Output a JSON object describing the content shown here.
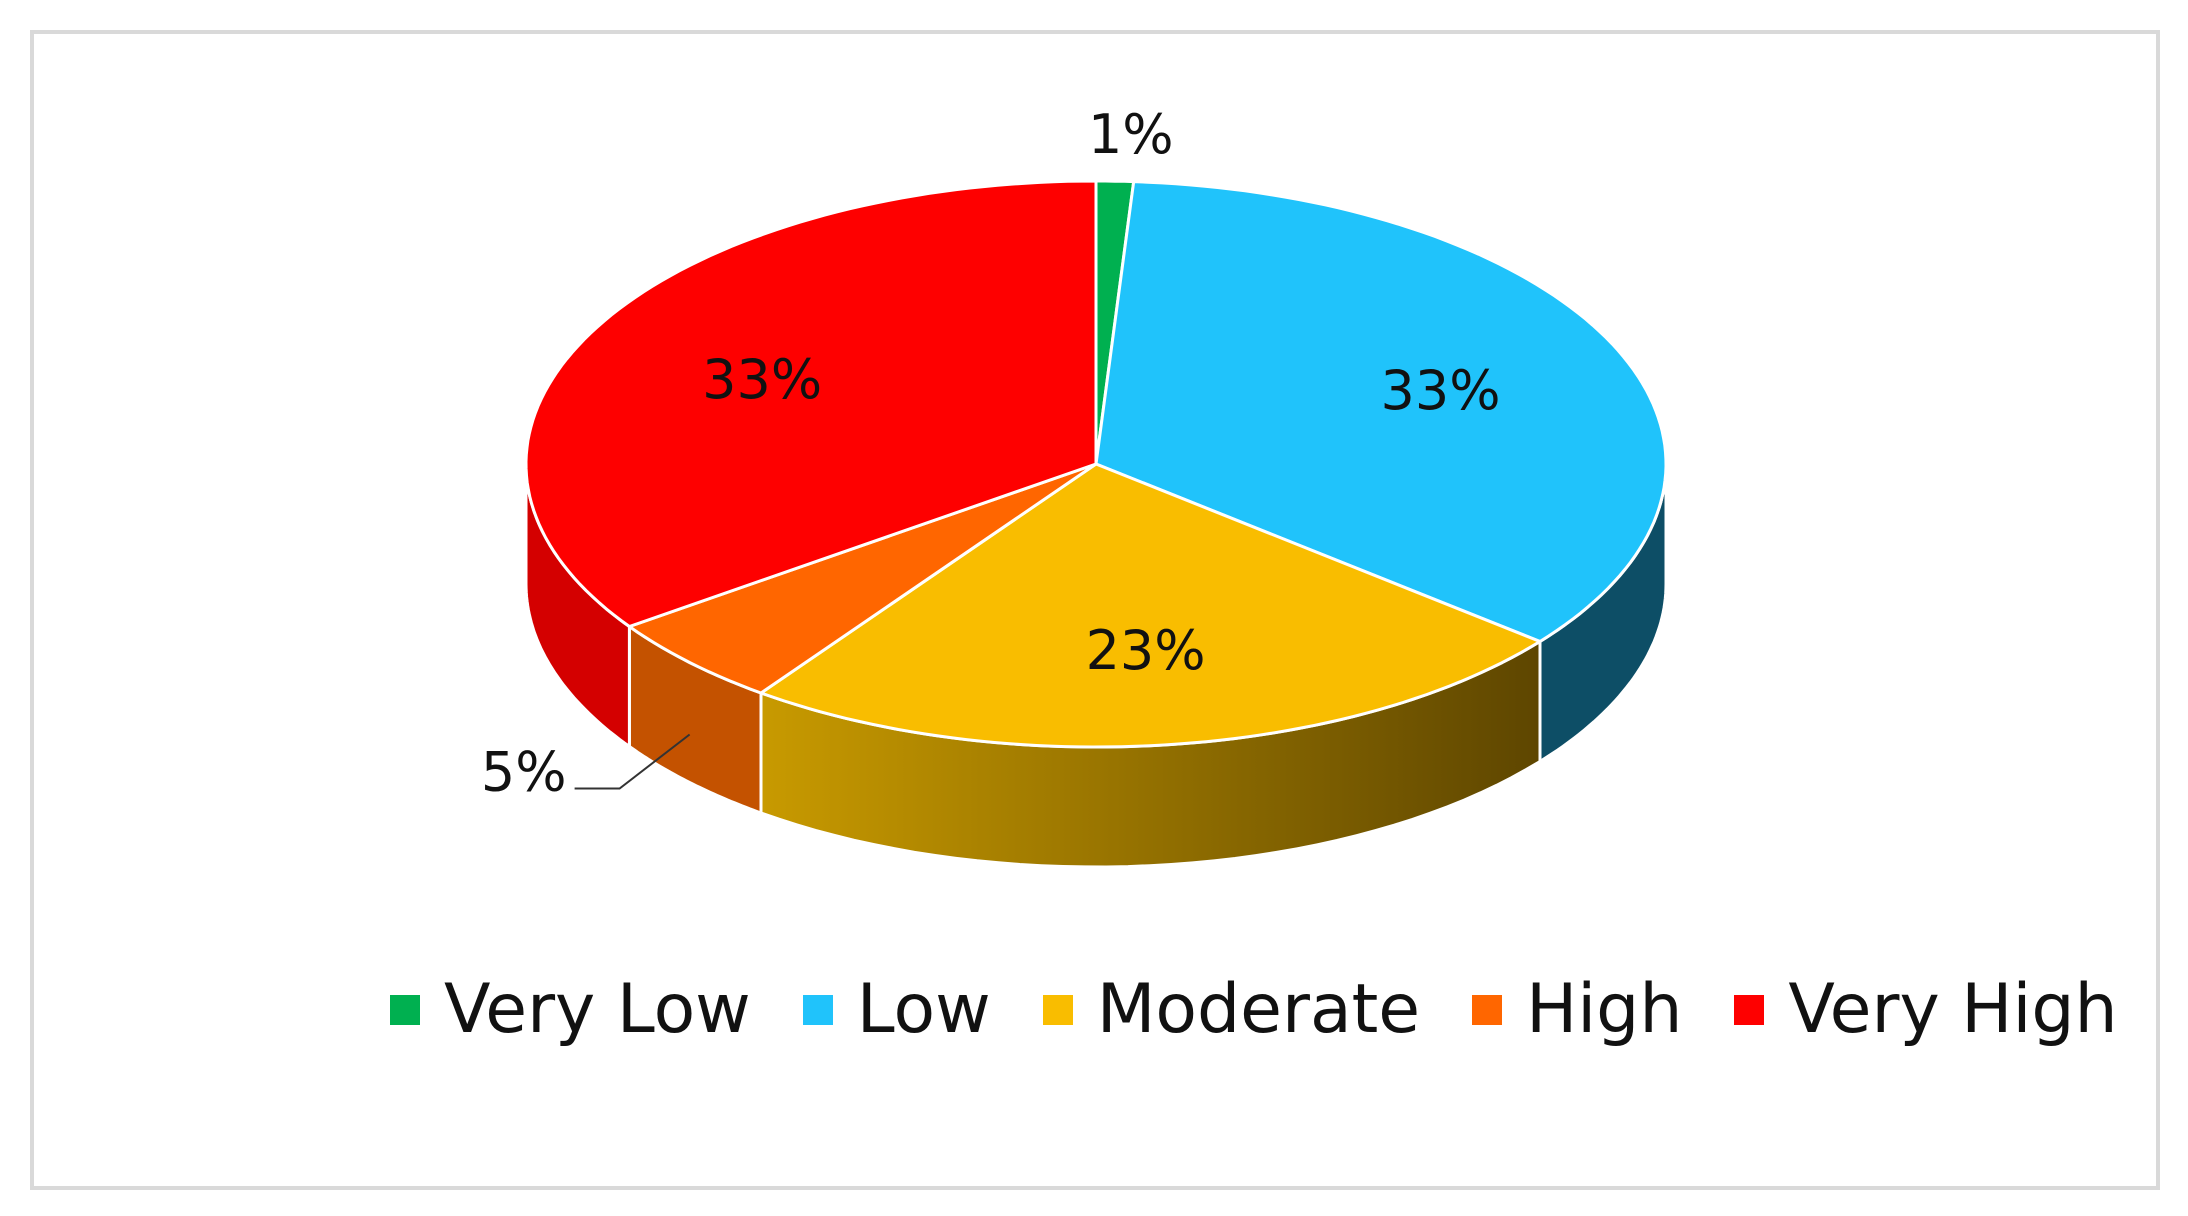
{
  "chart_data": {
    "type": "pie",
    "title": "",
    "three_d": true,
    "categories": [
      "Very Low",
      "Low",
      "Moderate",
      "High",
      "Very High"
    ],
    "values": [
      1,
      33,
      23,
      5,
      33
    ],
    "data_labels": [
      "1%",
      "33%",
      "23%",
      "5%",
      "33%"
    ],
    "colors": [
      "#00b050",
      "#20c3fb",
      "#f9bd00",
      "#ff6600",
      "#fe0000"
    ],
    "side_colors": [
      "#00803a",
      "#0d4e66",
      "#7a5a00",
      "#c45200",
      "#d40000"
    ],
    "legend_position": "bottom"
  }
}
